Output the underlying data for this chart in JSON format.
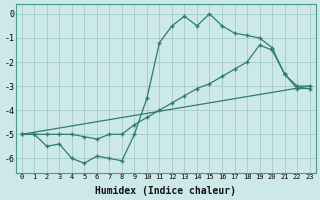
{
  "xlabel": "Humidex (Indice chaleur)",
  "x_ticks": [
    0,
    1,
    2,
    3,
    4,
    5,
    6,
    7,
    8,
    9,
    10,
    11,
    12,
    13,
    14,
    15,
    16,
    17,
    18,
    19,
    20,
    21,
    22,
    23
  ],
  "xlim": [
    -0.5,
    23.5
  ],
  "ylim": [
    -6.6,
    0.4
  ],
  "yticks": [
    0,
    -1,
    -2,
    -3,
    -4,
    -5,
    -6
  ],
  "bg_color": "#cde8e8",
  "grid_color": "#aacece",
  "line_color": "#2e7d6e",
  "line1_x": [
    0,
    1,
    2,
    3,
    4,
    5,
    6,
    7,
    8,
    9,
    10,
    11,
    12,
    13,
    14,
    15,
    16,
    17,
    18,
    19,
    20,
    21,
    22,
    23
  ],
  "line1_y": [
    -5.0,
    -5.0,
    -5.5,
    -5.4,
    -6.0,
    -6.2,
    -5.9,
    -6.0,
    -6.1,
    -5.0,
    -3.5,
    -1.2,
    -0.5,
    -0.1,
    -0.5,
    0.0,
    -0.5,
    -0.8,
    -0.9,
    -1.0,
    -1.4,
    -2.5,
    -3.0,
    -3.0
  ],
  "line2_x": [
    0,
    1,
    2,
    3,
    4,
    5,
    6,
    7,
    8,
    9,
    10,
    11,
    12,
    13,
    14,
    15,
    16,
    17,
    18,
    19,
    20,
    21,
    22,
    23
  ],
  "line2_y": [
    -5.0,
    -5.0,
    -5.0,
    -5.0,
    -5.0,
    -5.1,
    -5.2,
    -5.0,
    -5.0,
    -4.6,
    -4.3,
    -4.0,
    -3.7,
    -3.4,
    -3.1,
    -2.9,
    -2.6,
    -2.3,
    -2.0,
    -1.3,
    -1.5,
    -2.5,
    -3.1,
    -3.1
  ],
  "line3_x": [
    0,
    23
  ],
  "line3_y": [
    -5.0,
    -3.0
  ]
}
